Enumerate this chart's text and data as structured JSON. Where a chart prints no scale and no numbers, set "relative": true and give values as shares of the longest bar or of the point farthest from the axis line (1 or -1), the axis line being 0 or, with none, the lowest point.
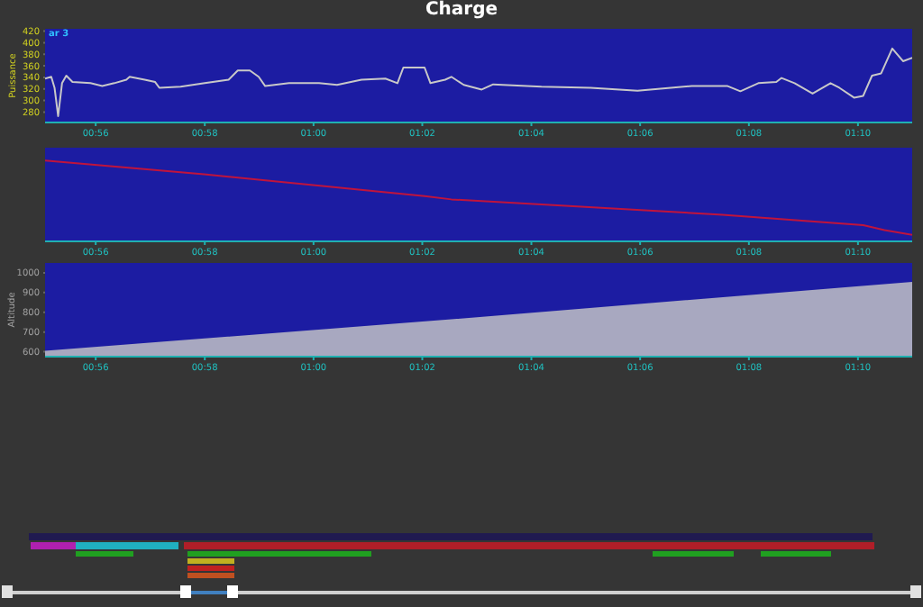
{
  "chart_data": [
    {
      "type": "line",
      "title": "Charge",
      "ylabel": "Puissance",
      "annotations": [
        "ar 3"
      ],
      "x": [
        0.9178,
        0.9197,
        0.9207,
        0.9218,
        0.923,
        0.9243,
        0.9262,
        0.9317,
        0.9353,
        0.939,
        0.9427,
        0.9437,
        0.9483,
        0.9515,
        0.9528,
        0.9593,
        0.9667,
        0.974,
        0.9768,
        0.9805,
        0.9832,
        0.9852,
        0.9925,
        1.0017,
        1.0072,
        1.0147,
        1.022,
        1.0257,
        1.0275,
        1.034,
        1.0358,
        1.0403,
        1.0422,
        1.046,
        1.0515,
        1.055,
        1.0698,
        1.0848,
        1.0992,
        1.1158,
        1.1268,
        1.1307,
        1.1362,
        1.1417,
        1.1433,
        1.1473,
        1.1528,
        1.1583,
        1.161,
        1.1655,
        1.1683,
        1.171,
        1.1738,
        1.1772,
        1.1805,
        1.1833
      ],
      "series": [
        {
          "color": "#c8c8c8",
          "values": [
            338,
            341,
            322,
            273,
            330,
            343,
            332,
            330,
            325,
            330,
            336,
            341,
            336,
            332,
            322,
            324,
            330,
            336,
            352,
            352,
            341,
            325,
            330,
            330,
            327,
            336,
            338,
            330,
            357,
            357,
            330,
            336,
            341,
            327,
            319,
            328,
            324,
            322,
            317,
            325,
            325,
            316,
            330,
            332,
            339,
            330,
            312,
            330,
            322,
            305,
            308,
            343,
            347,
            390,
            368,
            374
          ]
        }
      ],
      "xlim": [
        0.9178,
        1.1833
      ],
      "xticks": [
        {
          "value": 0.9333,
          "label": "00:56"
        },
        {
          "value": 0.9667,
          "label": "00:58"
        },
        {
          "value": 1.0,
          "label": "01:00"
        },
        {
          "value": 1.0333,
          "label": "01:02"
        },
        {
          "value": 1.0667,
          "label": "01:04"
        },
        {
          "value": 1.1,
          "label": "01:06"
        },
        {
          "value": 1.1333,
          "label": "01:08"
        },
        {
          "value": 1.1667,
          "label": "01:10"
        }
      ],
      "ylim": [
        262,
        424
      ],
      "yticks": [
        280,
        300,
        320,
        340,
        360,
        380,
        400,
        420
      ]
    },
    {
      "type": "line",
      "relative": true,
      "x": [
        0.9178,
        0.9665,
        1.034,
        1.0422,
        1.1252,
        1.1683,
        1.1748,
        1.1833
      ],
      "series": [
        {
          "color": "#c0143c",
          "values": [
            1,
            0.83,
            0.56,
            0.52,
            0.33,
            0.2,
            0.14,
            0.08
          ]
        }
      ],
      "xlim": [
        0.9178,
        1.1833
      ],
      "xticks": [
        {
          "value": 0.9333,
          "label": "00:56"
        },
        {
          "value": 0.9667,
          "label": "00:58"
        },
        {
          "value": 1.0,
          "label": "01:00"
        },
        {
          "value": 1.0333,
          "label": "01:02"
        },
        {
          "value": 1.0667,
          "label": "01:04"
        },
        {
          "value": 1.1,
          "label": "01:06"
        },
        {
          "value": 1.1333,
          "label": "01:08"
        },
        {
          "value": 1.1667,
          "label": "01:10"
        }
      ]
    },
    {
      "type": "area",
      "ylabel": "Altitude",
      "x": [
        0.9178,
        1.0422,
        1.1833
      ],
      "series": [
        {
          "color": "#a8a8c0",
          "values": [
            600,
            760,
            950
          ]
        }
      ],
      "xlim": [
        0.9178,
        1.1833
      ],
      "xticks": [
        {
          "value": 0.9333,
          "label": "00:56"
        },
        {
          "value": 0.9667,
          "label": "00:58"
        },
        {
          "value": 1.0,
          "label": "01:00"
        },
        {
          "value": 1.0333,
          "label": "01:02"
        },
        {
          "value": 1.0667,
          "label": "01:04"
        },
        {
          "value": 1.1,
          "label": "01:06"
        },
        {
          "value": 1.1333,
          "label": "01:08"
        },
        {
          "value": 1.1667,
          "label": "01:10"
        }
      ],
      "ylim": [
        575,
        1050
      ],
      "yticks": [
        600,
        700,
        800,
        900,
        1000
      ]
    }
  ]
}
